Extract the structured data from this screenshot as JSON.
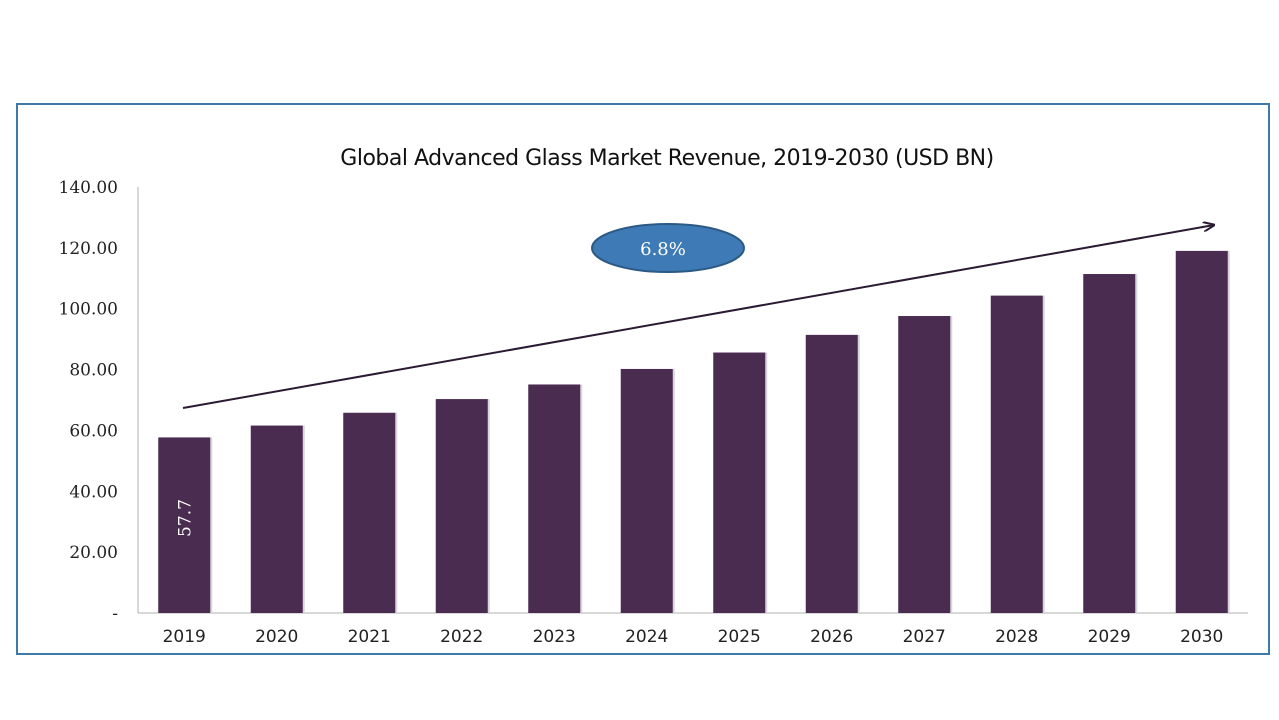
{
  "chart_data": {
    "type": "bar",
    "title": "Global Advanced Glass Market Revenue, 2019-2030 (USD BN)",
    "categories": [
      "2019",
      "2020",
      "2021",
      "2022",
      "2023",
      "2024",
      "2025",
      "2026",
      "2027",
      "2028",
      "2029",
      "2030"
    ],
    "values": [
      57.7,
      61.6,
      65.8,
      70.3,
      75.1,
      80.2,
      85.6,
      91.4,
      97.6,
      104.3,
      111.4,
      119.0
    ],
    "ylim": [
      0,
      140
    ],
    "yticks": [
      "-",
      "20.00",
      "40.00",
      "60.00",
      "80.00",
      "100.00",
      "120.00",
      "140.00"
    ],
    "grid": false,
    "bar_color": "#4a2c50",
    "data_labels": [
      {
        "index": 0,
        "text": "57.7"
      }
    ],
    "annotation": {
      "cagr_label": "6.8%",
      "color": "#3e7ab5",
      "trend_arrow": true
    }
  }
}
